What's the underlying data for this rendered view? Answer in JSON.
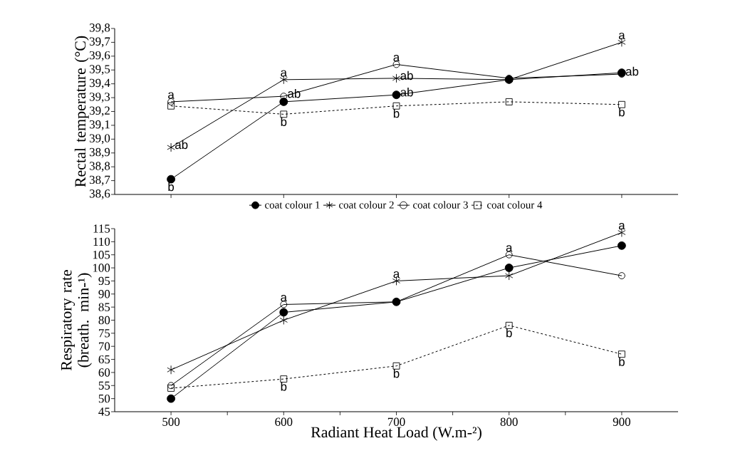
{
  "chart_data": [
    {
      "type": "line",
      "ylabel": "Rectal temperature (°C)",
      "x": [
        500,
        600,
        700,
        800,
        900
      ],
      "xlim": [
        450,
        950
      ],
      "xticks": [
        500,
        600,
        700,
        800,
        900
      ],
      "tick_labels": "y",
      "ylim": [
        38.6,
        39.8
      ],
      "yticks": [
        {
          "value": 38.6,
          "label": "38,6"
        },
        {
          "value": 38.7,
          "label": "38,7"
        },
        {
          "value": 38.8,
          "label": "38,8"
        },
        {
          "value": 38.9,
          "label": "38,9"
        },
        {
          "value": 39.0,
          "label": "39,0"
        },
        {
          "value": 39.1,
          "label": "39,1"
        },
        {
          "value": 39.2,
          "label": "39,2"
        },
        {
          "value": 39.3,
          "label": "39,3"
        },
        {
          "value": 39.4,
          "label": "39,4"
        },
        {
          "value": 39.5,
          "label": "39,5"
        },
        {
          "value": 39.6,
          "label": "39,6"
        },
        {
          "value": 39.7,
          "label": "39,7"
        },
        {
          "value": 39.8,
          "label": "39,8"
        }
      ],
      "legend": "bottom",
      "grid": false,
      "series": [
        {
          "name": "coat colour 1",
          "color": "#000000",
          "marker": "circle",
          "line_style": "solid",
          "values": [
            38.71,
            39.27,
            39.32,
            39.43,
            39.48
          ]
        },
        {
          "name": "coat colour 2",
          "color": "#000000",
          "marker": "cross",
          "line_style": "solid",
          "values": [
            38.94,
            39.43,
            39.44,
            39.43,
            39.7
          ]
        },
        {
          "name": "coat colour 3",
          "color": "#000000",
          "marker": "circle",
          "line_style": "solid",
          "values": [
            39.27,
            39.31,
            39.54,
            39.44,
            39.47
          ]
        },
        {
          "name": "coat colour 4",
          "color": "#000000",
          "marker": "square",
          "line_style": "dashed",
          "values": [
            39.24,
            39.18,
            39.24,
            39.27,
            39.25
          ]
        }
      ],
      "annotations": [
        {
          "text": "a",
          "x": 500,
          "y": 39.27
        },
        {
          "text": "ab",
          "x": 500,
          "y": 38.94
        },
        {
          "text": "b",
          "x": 500,
          "y": 38.71
        },
        {
          "text": "a",
          "x": 600,
          "y": 39.43
        },
        {
          "text": "ab",
          "x": 600,
          "y": 39.31
        },
        {
          "text": "b",
          "x": 600,
          "y": 39.18
        },
        {
          "text": "a",
          "x": 700,
          "y": 39.54
        },
        {
          "text": "ab",
          "x": 700,
          "y": 39.44
        },
        {
          "text": "ab",
          "x": 700,
          "y": 39.32
        },
        {
          "text": "b",
          "x": 700,
          "y": 39.24
        },
        {
          "text": "a",
          "x": 900,
          "y": 39.7
        },
        {
          "text": "ab",
          "x": 900,
          "y": 39.47
        },
        {
          "text": "b",
          "x": 900,
          "y": 39.25
        }
      ]
    },
    {
      "type": "line",
      "xlabel": "Radiant Heat Load (W.m-²)",
      "ylabel": "Respiratory rate (breath. min-¹)",
      "x": [
        500,
        600,
        700,
        800,
        900
      ],
      "xlim": [
        450,
        950
      ],
      "xticks": [
        500,
        {
          "value": 550,
          "label": null
        },
        600,
        {
          "value": 650,
          "label": null
        },
        700,
        {
          "value": 750,
          "label": null
        },
        800,
        {
          "value": 850,
          "label": null
        },
        900
      ],
      "ylim": [
        45,
        115
      ],
      "yticks": [
        45,
        50,
        55,
        60,
        65,
        70,
        75,
        80,
        85,
        90,
        95,
        100,
        105,
        110,
        115
      ],
      "grid": false,
      "series": [
        {
          "color": "#000000",
          "marker": "circle",
          "line_style": "solid",
          "values": [
            50,
            83,
            87,
            100,
            108.5
          ]
        },
        {
          "color": "#000000",
          "marker": "cross",
          "line_style": "solid",
          "values": [
            61,
            80,
            95,
            97,
            113.5
          ]
        },
        {
          "color": "#000000",
          "marker": "circle",
          "line_style": "solid",
          "values": [
            55,
            86,
            87,
            105,
            97
          ]
        },
        {
          "color": "#000000",
          "marker": "square",
          "line_style": "dashed",
          "values": [
            54,
            57.5,
            62.5,
            78,
            67
          ]
        }
      ],
      "annotations": [
        {
          "text": "a",
          "x": 600,
          "y": 86
        },
        {
          "text": "b",
          "x": 600,
          "y": 57.5
        },
        {
          "text": "a",
          "x": 700,
          "y": 95
        },
        {
          "text": "b",
          "x": 700,
          "y": 62.5
        },
        {
          "text": "a",
          "x": 800,
          "y": 105
        },
        {
          "text": "b",
          "x": 800,
          "y": 78
        },
        {
          "text": "a",
          "x": 900,
          "y": 113.5
        },
        {
          "text": "b",
          "x": 900,
          "y": 67
        }
      ]
    }
  ]
}
